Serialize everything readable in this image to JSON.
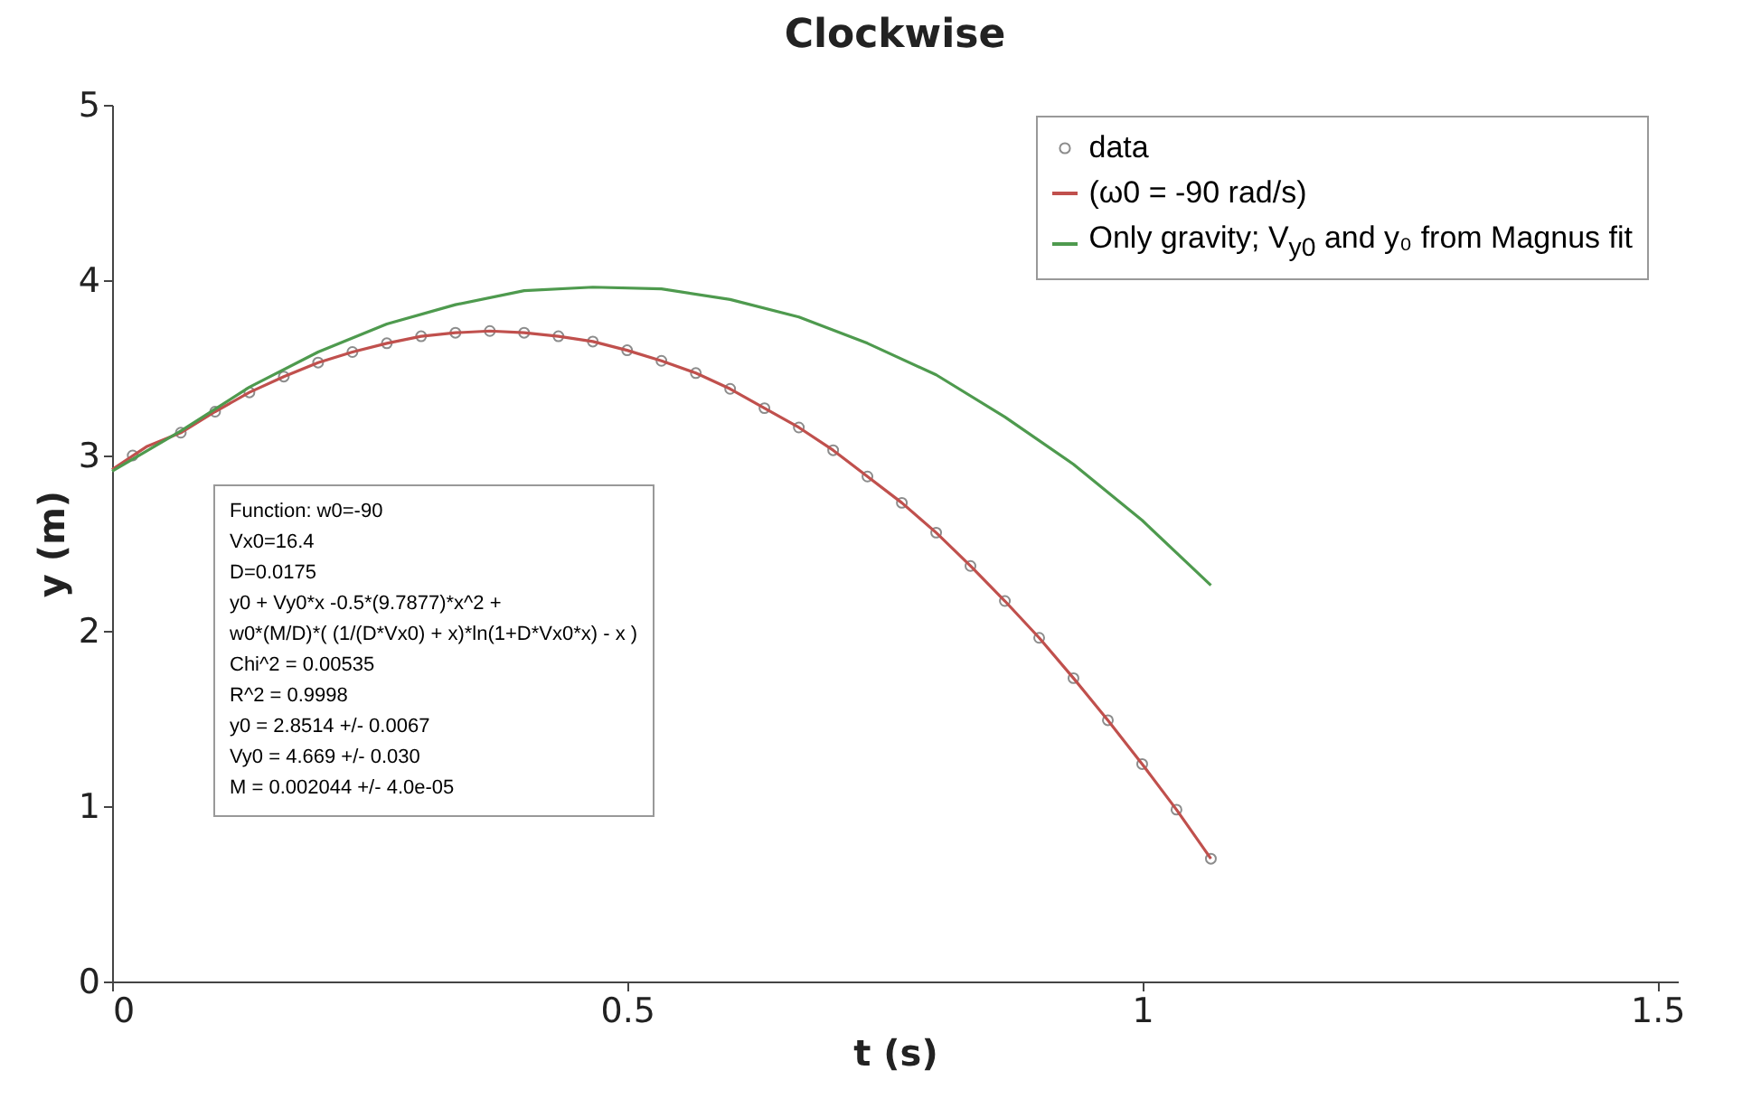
{
  "chart_data": {
    "type": "line",
    "title": "Clockwise",
    "xlabel": "t (s)",
    "ylabel": "y (m)",
    "xlim": [
      0,
      1.52
    ],
    "xticks": [
      0,
      0.5,
      1,
      1.5
    ],
    "ylim": [
      0,
      5
    ],
    "yticks": [
      0,
      1,
      2,
      3,
      4,
      5
    ],
    "grid": false,
    "legend": "top right",
    "annotations": [
      "Function: w0=-90",
      "Vx0=16.4",
      "D=0.0175",
      "y0 + Vy0*x -0.5*(9.7877)*x^2 +",
      "w0*(M/D)*( (1/(D*Vx0) + x)*ln(1+D*Vx0*x) - x )",
      "Chi^2 = 0.00535",
      "R^2 = 0.9998",
      "y0 = 2.8514 +/- 0.0067",
      "Vy0 = 4.669 +/- 0.030",
      "M = 0.002044 +/- 4.0e-05"
    ],
    "series": [
      {
        "name": "data",
        "type": "scatter",
        "marker": "circle",
        "color": "#8c8c8c",
        "x": [
          0.02,
          0.0667,
          0.1,
          0.1333,
          0.1667,
          0.2,
          0.2333,
          0.2667,
          0.3,
          0.3333,
          0.3667,
          0.4,
          0.4333,
          0.4667,
          0.5,
          0.5333,
          0.5667,
          0.6,
          0.6333,
          0.6667,
          0.7,
          0.7333,
          0.7667,
          0.8,
          0.8333,
          0.8667,
          0.9,
          0.9333,
          0.9667,
          1.0,
          1.0333,
          1.0667
        ],
        "values": [
          3.0,
          3.13,
          3.25,
          3.36,
          3.45,
          3.53,
          3.59,
          3.64,
          3.68,
          3.7,
          3.71,
          3.7,
          3.68,
          3.65,
          3.6,
          3.54,
          3.47,
          3.38,
          3.27,
          3.16,
          3.03,
          2.88,
          2.73,
          2.56,
          2.37,
          2.17,
          1.96,
          1.73,
          1.49,
          1.24,
          0.98,
          0.7
        ]
      },
      {
        "name": "(ω0 = -90 rad/s)",
        "type": "line",
        "color": "#c0504d",
        "x": [
          0,
          0.0333,
          0.0667,
          0.1,
          0.1333,
          0.1667,
          0.2,
          0.2333,
          0.2667,
          0.3,
          0.3333,
          0.3667,
          0.4,
          0.4333,
          0.4667,
          0.5,
          0.5333,
          0.5667,
          0.6,
          0.6333,
          0.6667,
          0.7,
          0.7333,
          0.7667,
          0.8,
          0.8333,
          0.8667,
          0.9,
          0.9333,
          0.9667,
          1.0,
          1.0333,
          1.0667
        ],
        "values": [
          2.92,
          3.05,
          3.13,
          3.25,
          3.36,
          3.45,
          3.53,
          3.59,
          3.64,
          3.68,
          3.7,
          3.71,
          3.7,
          3.68,
          3.65,
          3.6,
          3.54,
          3.47,
          3.38,
          3.27,
          3.16,
          3.03,
          2.88,
          2.73,
          2.56,
          2.37,
          2.17,
          1.96,
          1.73,
          1.49,
          1.24,
          0.98,
          0.7
        ]
      },
      {
        "name": "Only gravity; V$_{y0}$ and y₀ from Magnus fit",
        "type": "line",
        "color": "#4e9a4e",
        "x": [
          0,
          0.0667,
          0.1333,
          0.2,
          0.2667,
          0.3333,
          0.4,
          0.4667,
          0.5333,
          0.6,
          0.6667,
          0.7333,
          0.8,
          0.8667,
          0.9333,
          1.0,
          1.0667
        ],
        "values": [
          2.91,
          3.14,
          3.39,
          3.59,
          3.75,
          3.86,
          3.94,
          3.96,
          3.95,
          3.89,
          3.79,
          3.64,
          3.46,
          3.22,
          2.95,
          2.63,
          2.26
        ]
      }
    ]
  }
}
